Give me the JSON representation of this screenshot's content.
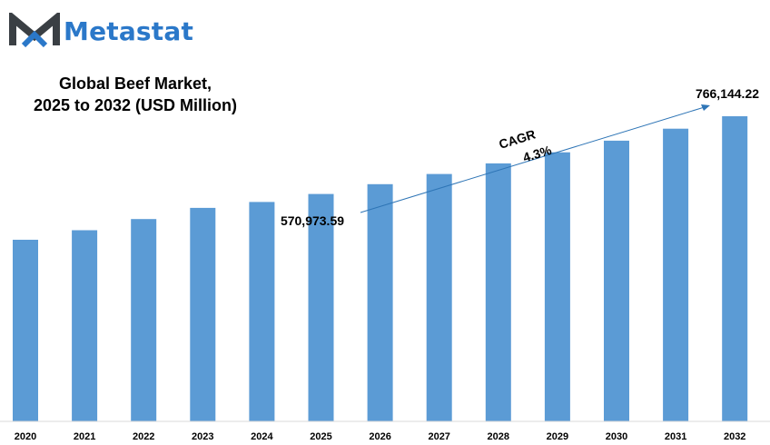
{
  "brand": {
    "name": "Metastat",
    "logo_icon": "metastat-m-logo",
    "colors": {
      "dark": "#3a3f44",
      "blue": "#2b78c9"
    }
  },
  "chart_data": {
    "type": "bar",
    "title_line1": "Global Beef Market,",
    "title_line2": "2025 to 2032 (USD Million)",
    "categories": [
      "2020",
      "2021",
      "2022",
      "2023",
      "2024",
      "2025",
      "2026",
      "2027",
      "2028",
      "2029",
      "2030",
      "2031",
      "2032"
    ],
    "values": [
      456000,
      480000,
      508000,
      536000,
      551000,
      570973.59,
      595500,
      621100,
      647800,
      675600,
      704700,
      735000,
      766144.22
    ],
    "bar_color": "#5b9bd5",
    "annotations": {
      "start_value": "570,973.59",
      "end_value": "766,144.22",
      "cagr_label": "CAGR",
      "cagr_value": "4.3%"
    },
    "xlabel": "",
    "ylabel": "",
    "grid": false,
    "legend": "none"
  }
}
